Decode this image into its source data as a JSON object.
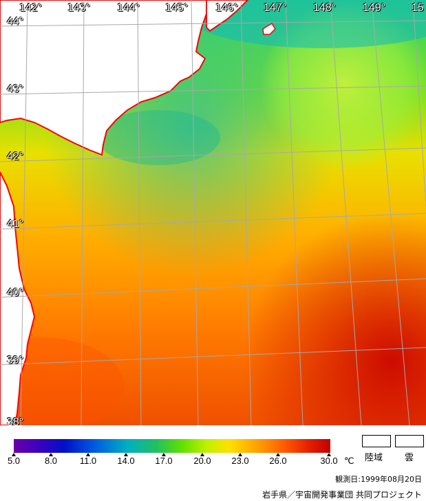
{
  "map": {
    "lon_labels": [
      "142°",
      "143°",
      "144°",
      "145°",
      "146°",
      "147°",
      "148°",
      "149°",
      "15"
    ],
    "lat_labels": [
      "44°",
      "43°",
      "42°",
      "41°",
      "40°",
      "39°",
      "38°"
    ]
  },
  "legend": {
    "ticks": [
      "5.0",
      "8.0",
      "11.0",
      "14.0",
      "17.0",
      "20.0",
      "23.0",
      "26.0",
      "30.0"
    ],
    "unit": "℃",
    "land_label": "陸域",
    "cloud_label": "雲"
  },
  "footer": {
    "observation_date": "観測日:1999年08月20日",
    "credit": "岩手県／宇宙開発事業団 共同プロジェクト"
  },
  "colors": {
    "land": "#ffffff",
    "coast": "#ff0000",
    "grid": "#a8a8a8"
  }
}
